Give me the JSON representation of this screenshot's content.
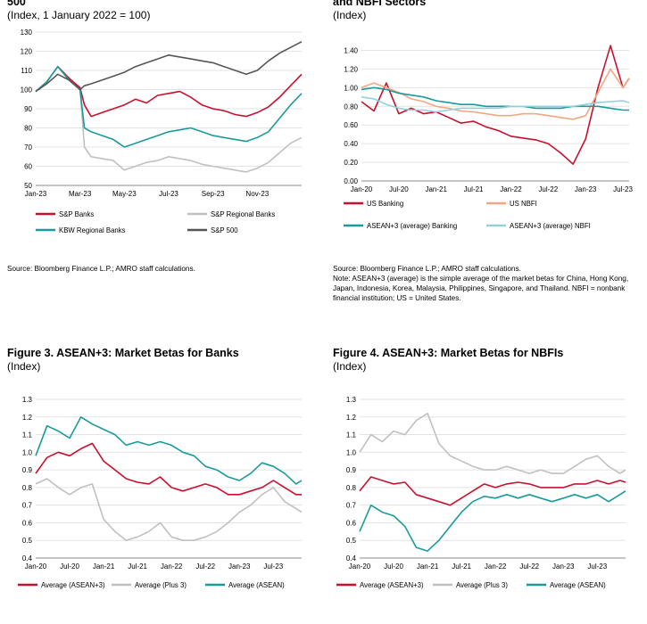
{
  "figure1": {
    "title_fragment": "500",
    "subtitle": "(Index, 1 January 2022 = 100)",
    "source": "Source: Bloomberg Finance L.P.; AMRO staff calculations."
  },
  "figure2": {
    "title_fragment": "and NBFI Sectors",
    "subtitle": "(Index)",
    "source": "Source: Bloomberg Finance L.P.; AMRO staff calculations.",
    "note": "Note: ASEAN+3 (average) is the simple average of the market betas for China, Hong Kong, Japan, Indonesia, Korea, Malaysia, Philippines, Singapore, and Thailand. NBFI = nonbank financial institution; US = United States."
  },
  "figure3": {
    "title": "Figure 3. ASEAN+3: Market Betas for Banks",
    "subtitle": "(Index)"
  },
  "figure4": {
    "title": "Figure 4. ASEAN+3: Market Betas for NBFIs",
    "subtitle": "(Index)"
  },
  "chart_data": [
    {
      "id": "c1",
      "type": "line",
      "ylim": [
        50,
        130
      ],
      "yticks": [
        50,
        60,
        70,
        80,
        90,
        100,
        110,
        120,
        130
      ],
      "ytick_labels": [
        "50",
        "60",
        "70",
        "80",
        "90",
        "100",
        "110",
        "120",
        "130"
      ],
      "xlim": [
        0,
        12
      ],
      "xticks": [
        0,
        2,
        4,
        6,
        8,
        10
      ],
      "xtick_labels": [
        "Jan-23",
        "Mar-23",
        "May-23",
        "Jul-23",
        "Sep-23",
        "Nov-23"
      ],
      "grid": "horizontal",
      "legend_position": "bottom",
      "series": [
        {
          "name": "S&P Banks",
          "color": "#c8102e",
          "x": [
            0,
            0.5,
            1,
            1.5,
            2,
            2.2,
            2.5,
            3,
            3.5,
            4,
            4.5,
            5,
            5.5,
            6,
            6.5,
            7,
            7.5,
            8,
            8.5,
            9,
            9.5,
            10,
            10.5,
            11,
            11.5,
            12
          ],
          "y": [
            99,
            104,
            112,
            106,
            101,
            92,
            86,
            88,
            90,
            92,
            95,
            93,
            97,
            98,
            99,
            96,
            92,
            90,
            89,
            87,
            86,
            88,
            91,
            96,
            102,
            108
          ]
        },
        {
          "name": "S&P Regional Banks",
          "color": "#c0c0c0",
          "x": [
            0,
            0.5,
            1,
            1.5,
            2,
            2.2,
            2.5,
            3,
            3.5,
            4,
            4.5,
            5,
            5.5,
            6,
            6.5,
            7,
            7.5,
            8,
            8.5,
            9,
            9.5,
            10,
            10.5,
            11,
            11.5,
            12
          ],
          "y": [
            99,
            104,
            112,
            105,
            100,
            70,
            65,
            64,
            63,
            58,
            60,
            62,
            63,
            65,
            64,
            63,
            61,
            60,
            59,
            58,
            57,
            59,
            62,
            67,
            72,
            75
          ]
        },
        {
          "name": "KBW Regional Banks",
          "color": "#1a9a9a",
          "x": [
            0,
            0.5,
            1,
            1.5,
            2,
            2.2,
            2.5,
            3,
            3.5,
            4,
            4.5,
            5,
            5.5,
            6,
            6.5,
            7,
            7.5,
            8,
            8.5,
            9,
            9.5,
            10,
            10.5,
            11,
            11.5,
            12
          ],
          "y": [
            99,
            104,
            112,
            105,
            100,
            80,
            78,
            76,
            74,
            70,
            72,
            74,
            76,
            78,
            79,
            80,
            78,
            76,
            75,
            74,
            73,
            75,
            78,
            85,
            92,
            98
          ]
        },
        {
          "name": "S&P 500",
          "color": "#555555",
          "x": [
            0,
            0.5,
            1,
            1.5,
            2,
            2.2,
            2.5,
            3,
            3.5,
            4,
            4.5,
            5,
            5.5,
            6,
            6.5,
            7,
            7.5,
            8,
            8.5,
            9,
            9.5,
            10,
            10.5,
            11,
            11.5,
            12
          ],
          "y": [
            99,
            103,
            108,
            105,
            100,
            102,
            103,
            105,
            107,
            109,
            112,
            114,
            116,
            118,
            117,
            116,
            115,
            114,
            112,
            110,
            108,
            110,
            115,
            119,
            122,
            125
          ]
        }
      ]
    },
    {
      "id": "c2",
      "type": "line",
      "ylim": [
        0,
        1.5
      ],
      "yticks": [
        0,
        0.2,
        0.4,
        0.6,
        0.8,
        1.0,
        1.2,
        1.4
      ],
      "ytick_labels": [
        "0.00",
        "0.20",
        "0.40",
        "0.60",
        "0.80",
        "1.00",
        "1.20",
        "1.40"
      ],
      "xlim": [
        0,
        43
      ],
      "xticks": [
        0,
        6,
        12,
        18,
        24,
        30,
        36,
        42
      ],
      "xtick_labels": [
        "Jan-20",
        "Jul-20",
        "Jan-21",
        "Jul-21",
        "Jan-22",
        "Jul-22",
        "Jan-23",
        "Jul-23"
      ],
      "grid": "horizontal",
      "legend_position": "bottom",
      "series": [
        {
          "name": "US Banking",
          "color": "#c8102e",
          "x": [
            0,
            2,
            4,
            6,
            8,
            10,
            12,
            14,
            16,
            18,
            20,
            22,
            24,
            26,
            28,
            30,
            32,
            34,
            36,
            38,
            40,
            42,
            43
          ],
          "y": [
            0.85,
            0.75,
            1.05,
            0.72,
            0.78,
            0.72,
            0.74,
            0.68,
            0.62,
            0.64,
            0.58,
            0.54,
            0.48,
            0.46,
            0.44,
            0.4,
            0.3,
            0.18,
            0.45,
            1.0,
            1.45,
            1.0,
            1.1
          ]
        },
        {
          "name": "US NBFI",
          "color": "#f4a582",
          "x": [
            0,
            2,
            4,
            6,
            8,
            10,
            12,
            14,
            16,
            18,
            20,
            22,
            24,
            26,
            28,
            30,
            32,
            34,
            36,
            38,
            40,
            42,
            43
          ],
          "y": [
            1.0,
            1.05,
            1.0,
            0.95,
            0.88,
            0.85,
            0.8,
            0.78,
            0.75,
            0.74,
            0.72,
            0.7,
            0.7,
            0.72,
            0.72,
            0.7,
            0.68,
            0.66,
            0.7,
            0.95,
            1.2,
            1.0,
            1.1
          ]
        },
        {
          "name": "ASEAN+3 (average) Banking",
          "color": "#1a9a9a",
          "x": [
            0,
            2,
            4,
            6,
            8,
            10,
            12,
            14,
            16,
            18,
            20,
            22,
            24,
            26,
            28,
            30,
            32,
            34,
            36,
            38,
            40,
            42,
            43
          ],
          "y": [
            0.98,
            1.0,
            0.98,
            0.94,
            0.92,
            0.9,
            0.86,
            0.84,
            0.82,
            0.82,
            0.8,
            0.8,
            0.8,
            0.8,
            0.78,
            0.78,
            0.78,
            0.8,
            0.8,
            0.8,
            0.78,
            0.76,
            0.76
          ]
        },
        {
          "name": "ASEAN+3 (average) NBFI",
          "color": "#92d0dc",
          "x": [
            0,
            2,
            4,
            6,
            8,
            10,
            12,
            14,
            16,
            18,
            20,
            22,
            24,
            26,
            28,
            30,
            32,
            34,
            36,
            38,
            40,
            42,
            43
          ],
          "y": [
            0.9,
            0.88,
            0.82,
            0.78,
            0.76,
            0.76,
            0.74,
            0.76,
            0.78,
            0.78,
            0.78,
            0.78,
            0.8,
            0.8,
            0.8,
            0.8,
            0.8,
            0.8,
            0.82,
            0.84,
            0.85,
            0.86,
            0.84
          ]
        }
      ]
    },
    {
      "id": "c3",
      "type": "line",
      "ylim": [
        0.4,
        1.3
      ],
      "yticks": [
        0.4,
        0.5,
        0.6,
        0.7,
        0.8,
        0.9,
        1.0,
        1.1,
        1.2,
        1.3
      ],
      "ytick_labels": [
        "0.4",
        "0.5",
        "0.6",
        "0.7",
        "0.8",
        "0.9",
        "1.0",
        "1.1",
        "1.2",
        "1.3"
      ],
      "xlim": [
        0,
        47
      ],
      "xticks": [
        0,
        6,
        12,
        18,
        24,
        30,
        36,
        42
      ],
      "xtick_labels": [
        "Jan-20",
        "Jul-20",
        "Jan-21",
        "Jul-21",
        "Jan-22",
        "Jul-22",
        "Jan-23",
        "Jul-23"
      ],
      "grid": "horizontal",
      "legend_position": "bottom",
      "series": [
        {
          "name": "Average (ASEAN+3)",
          "color": "#c8102e",
          "x": [
            0,
            2,
            4,
            6,
            8,
            10,
            12,
            14,
            16,
            18,
            20,
            22,
            24,
            26,
            28,
            30,
            32,
            34,
            36,
            38,
            40,
            42,
            44,
            46,
            47
          ],
          "y": [
            0.88,
            0.97,
            1.0,
            0.98,
            1.02,
            1.05,
            0.95,
            0.9,
            0.85,
            0.83,
            0.82,
            0.86,
            0.8,
            0.78,
            0.8,
            0.82,
            0.8,
            0.76,
            0.76,
            0.78,
            0.8,
            0.84,
            0.8,
            0.76,
            0.76
          ]
        },
        {
          "name": "Average (Plus 3)",
          "color": "#c0c0c0",
          "x": [
            0,
            2,
            4,
            6,
            8,
            10,
            12,
            14,
            16,
            18,
            20,
            22,
            24,
            26,
            28,
            30,
            32,
            34,
            36,
            38,
            40,
            42,
            44,
            46,
            47
          ],
          "y": [
            0.82,
            0.85,
            0.8,
            0.76,
            0.8,
            0.82,
            0.62,
            0.55,
            0.5,
            0.52,
            0.55,
            0.6,
            0.52,
            0.5,
            0.5,
            0.52,
            0.55,
            0.6,
            0.66,
            0.7,
            0.76,
            0.8,
            0.72,
            0.68,
            0.66
          ]
        },
        {
          "name": "Average (ASEAN)",
          "color": "#1a9a9a",
          "x": [
            0,
            2,
            4,
            6,
            8,
            10,
            12,
            14,
            16,
            18,
            20,
            22,
            24,
            26,
            28,
            30,
            32,
            34,
            36,
            38,
            40,
            42,
            44,
            46,
            47
          ],
          "y": [
            0.98,
            1.15,
            1.12,
            1.08,
            1.2,
            1.16,
            1.13,
            1.1,
            1.04,
            1.06,
            1.04,
            1.06,
            1.04,
            1.0,
            0.98,
            0.92,
            0.9,
            0.86,
            0.84,
            0.88,
            0.94,
            0.92,
            0.88,
            0.82,
            0.84
          ]
        }
      ]
    },
    {
      "id": "c4",
      "type": "line",
      "ylim": [
        0.4,
        1.3
      ],
      "yticks": [
        0.4,
        0.5,
        0.6,
        0.7,
        0.8,
        0.9,
        1.0,
        1.1,
        1.2,
        1.3
      ],
      "ytick_labels": [
        "0.4",
        "0.5",
        "0.6",
        "0.7",
        "0.8",
        "0.9",
        "1.0",
        "1.1",
        "1.2",
        "1.3"
      ],
      "xlim": [
        0,
        47
      ],
      "xticks": [
        0,
        6,
        12,
        18,
        24,
        30,
        36,
        42
      ],
      "xtick_labels": [
        "Jan-20",
        "Jul-20",
        "Jan-21",
        "Jul-21",
        "Jan-22",
        "Jul-22",
        "Jan-23",
        "Jul-23"
      ],
      "grid": "horizontal",
      "legend_position": "bottom",
      "series": [
        {
          "name": "Average (ASEAN+3)",
          "color": "#c8102e",
          "x": [
            0,
            2,
            4,
            6,
            8,
            10,
            12,
            14,
            16,
            18,
            20,
            22,
            24,
            26,
            28,
            30,
            32,
            34,
            36,
            38,
            40,
            42,
            44,
            46,
            47
          ],
          "y": [
            0.78,
            0.86,
            0.84,
            0.82,
            0.83,
            0.76,
            0.74,
            0.72,
            0.7,
            0.74,
            0.78,
            0.82,
            0.8,
            0.82,
            0.83,
            0.82,
            0.8,
            0.8,
            0.8,
            0.82,
            0.82,
            0.84,
            0.82,
            0.84,
            0.83
          ]
        },
        {
          "name": "Average (Plus 3)",
          "color": "#c0c0c0",
          "x": [
            0,
            2,
            4,
            6,
            8,
            10,
            12,
            14,
            16,
            18,
            20,
            22,
            24,
            26,
            28,
            30,
            32,
            34,
            36,
            38,
            40,
            42,
            44,
            46,
            47
          ],
          "y": [
            1.0,
            1.1,
            1.06,
            1.12,
            1.1,
            1.18,
            1.22,
            1.05,
            0.98,
            0.95,
            0.92,
            0.9,
            0.9,
            0.92,
            0.9,
            0.88,
            0.9,
            0.88,
            0.88,
            0.92,
            0.96,
            0.98,
            0.92,
            0.88,
            0.9
          ]
        },
        {
          "name": "Average (ASEAN)",
          "color": "#1a9a9a",
          "x": [
            0,
            2,
            4,
            6,
            8,
            10,
            12,
            14,
            16,
            18,
            20,
            22,
            24,
            26,
            28,
            30,
            32,
            34,
            36,
            38,
            40,
            42,
            44,
            46,
            47
          ],
          "y": [
            0.55,
            0.7,
            0.66,
            0.64,
            0.58,
            0.46,
            0.44,
            0.5,
            0.58,
            0.66,
            0.72,
            0.75,
            0.74,
            0.76,
            0.74,
            0.76,
            0.74,
            0.72,
            0.74,
            0.76,
            0.74,
            0.76,
            0.72,
            0.76,
            0.78
          ]
        }
      ]
    }
  ]
}
